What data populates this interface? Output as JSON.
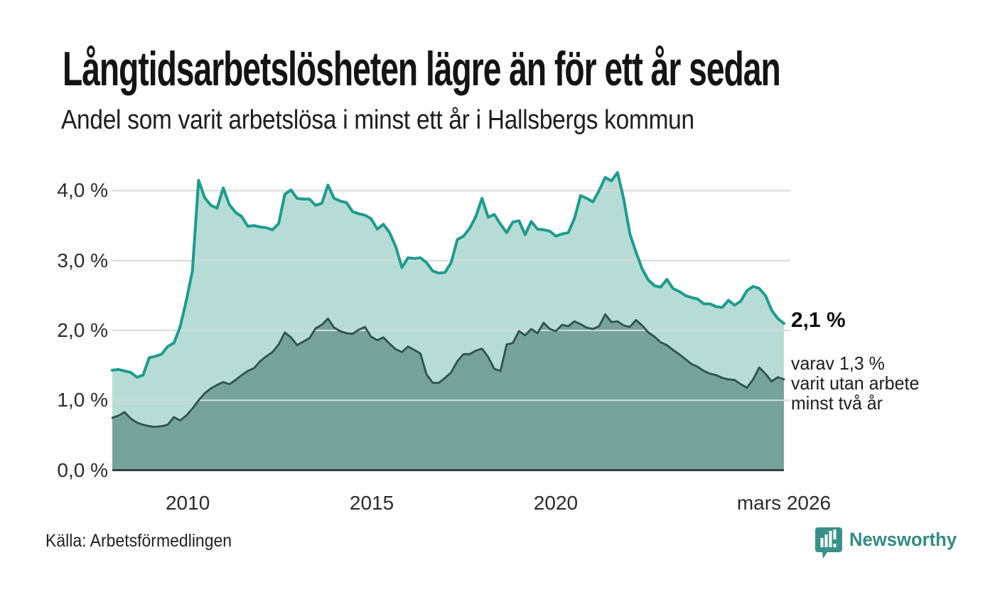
{
  "header": {
    "title": "Långtidsarbetslösheten lägre än för ett år sedan",
    "subtitle": "Andel som varit arbetslösa i minst ett år i Hallsbergs kommun"
  },
  "chart_data": {
    "type": "area",
    "title": "Långtidsarbetslösheten lägre än för ett år sedan",
    "subtitle": "Andel som varit arbetslösa i minst ett år i Hallsbergs kommun",
    "unit": "%",
    "period": {
      "start": "2008-01",
      "end": "2026-03",
      "interval": "2 months"
    },
    "series": [
      {
        "name": "Andel arbetslösa minst ett år",
        "color": "#1d9c8e",
        "fill": "#b7dcd6",
        "stroke_width": 4,
        "end_value": 2.1,
        "values": [
          1.43,
          1.44,
          1.42,
          1.4,
          1.33,
          1.36,
          1.61,
          1.63,
          1.66,
          1.77,
          1.82,
          2.05,
          2.42,
          2.85,
          4.15,
          3.9,
          3.79,
          3.75,
          4.04,
          3.8,
          3.69,
          3.63,
          3.49,
          3.5,
          3.48,
          3.47,
          3.44,
          3.53,
          3.95,
          4.01,
          3.89,
          3.88,
          3.88,
          3.79,
          3.82,
          4.08,
          3.89,
          3.85,
          3.83,
          3.7,
          3.67,
          3.65,
          3.6,
          3.45,
          3.52,
          3.4,
          3.2,
          2.9,
          3.04,
          3.03,
          3.04,
          2.97,
          2.85,
          2.82,
          2.83,
          2.97,
          3.3,
          3.35,
          3.46,
          3.63,
          3.89,
          3.62,
          3.66,
          3.52,
          3.4,
          3.55,
          3.57,
          3.37,
          3.56,
          3.45,
          3.44,
          3.42,
          3.35,
          3.38,
          3.4,
          3.6,
          3.93,
          3.89,
          3.84,
          4.0,
          4.19,
          4.14,
          4.26,
          3.88,
          3.38,
          3.12,
          2.88,
          2.72,
          2.64,
          2.62,
          2.73,
          2.6,
          2.56,
          2.5,
          2.47,
          2.45,
          2.38,
          2.38,
          2.34,
          2.33,
          2.43,
          2.36,
          2.42,
          2.57,
          2.63,
          2.6,
          2.5,
          2.29,
          2.17,
          2.1
        ]
      },
      {
        "name": "varav utan arbete minst två år",
        "color": "#2d524c",
        "fill": "#75a39b",
        "stroke_width": 2.8,
        "end_value": 1.3,
        "values": [
          0.75,
          0.78,
          0.83,
          0.74,
          0.68,
          0.65,
          0.63,
          0.62,
          0.63,
          0.65,
          0.76,
          0.71,
          0.78,
          0.88,
          1.0,
          1.1,
          1.17,
          1.22,
          1.26,
          1.23,
          1.29,
          1.36,
          1.42,
          1.46,
          1.56,
          1.63,
          1.69,
          1.8,
          1.97,
          1.9,
          1.79,
          1.84,
          1.89,
          2.03,
          2.08,
          2.17,
          2.04,
          1.99,
          1.96,
          1.95,
          2.01,
          2.05,
          1.91,
          1.86,
          1.9,
          1.81,
          1.73,
          1.69,
          1.77,
          1.72,
          1.67,
          1.37,
          1.25,
          1.25,
          1.32,
          1.4,
          1.56,
          1.66,
          1.66,
          1.71,
          1.74,
          1.62,
          1.45,
          1.42,
          1.8,
          1.82,
          1.99,
          1.93,
          2.02,
          1.96,
          2.11,
          2.02,
          1.99,
          2.08,
          2.06,
          2.13,
          2.09,
          2.04,
          2.02,
          2.06,
          2.23,
          2.12,
          2.13,
          2.07,
          2.05,
          2.15,
          2.07,
          1.97,
          1.91,
          1.83,
          1.79,
          1.72,
          1.66,
          1.59,
          1.52,
          1.48,
          1.42,
          1.38,
          1.36,
          1.32,
          1.3,
          1.29,
          1.23,
          1.18,
          1.3,
          1.47,
          1.38,
          1.27,
          1.33,
          1.3
        ]
      }
    ],
    "axis": {
      "y_ticks": [
        {
          "label": "0,0 %",
          "value": 0
        },
        {
          "label": "1,0 %",
          "value": 1
        },
        {
          "label": "2,0 %",
          "value": 2
        },
        {
          "label": "3,0 %",
          "value": 3
        },
        {
          "label": "4,0 %",
          "value": 4
        }
      ],
      "x_ticks": [
        {
          "label": "2010",
          "year": 2010.0
        },
        {
          "label": "2015",
          "year": 2015.0
        },
        {
          "label": "2020",
          "year": 2020.0
        },
        {
          "label": "mars 2026",
          "year": 2026.2
        }
      ],
      "x_range": [
        2007.95,
        2026.2
      ],
      "y_range": [
        0,
        4.35
      ],
      "grid": true,
      "legend": "none"
    },
    "annotation": {
      "value": "2,1 %",
      "sub": [
        "varav 1,3 %",
        "varit utan arbete",
        "minst två år"
      ]
    }
  },
  "footer": {
    "source": "Källa: Arbetsförmedlingen",
    "brand": "Newsworthy"
  },
  "colors": {
    "accent_line": "#1d9c8e",
    "light_fill": "#b7dcd6",
    "dark_fill": "#75a39b",
    "dark_line": "#2d524c",
    "gridline": "#d8d8d8",
    "axis_line": "#3f3f3f",
    "brand_teal": "#338c84",
    "text": "#141414"
  },
  "icons": {
    "brand_icon": "newsworthy-bar-chart-bubble"
  }
}
